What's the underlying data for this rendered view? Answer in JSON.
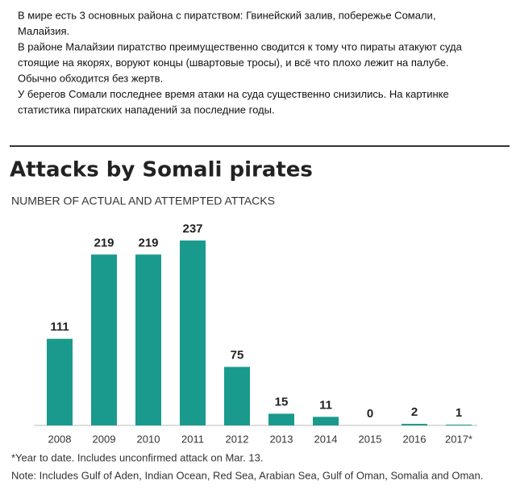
{
  "intro_lines": [
    "В мире есть 3 основных района с пиратством: Гвинейский залив, побережье Сомали,",
    "Малайзия.",
    "В районе Малайзии пиратство преимущественно сводится к тому что пираты атакуют суда",
    "стоящие  на якорях, воруют концы (швартовые тросы), и всё что плохо лежит на палубе.",
    "Обычно обходится без жертв.",
    "У берегов Сомали последнее время атаки на суда существенно снизились. На картинке",
    "статистика пиратских нападений за последние годы."
  ],
  "chart_data": {
    "type": "bar",
    "title": "Attacks by Somali pirates",
    "subtitle": "NUMBER OF ACTUAL AND ATTEMPTED ATTACKS",
    "categories": [
      "2008",
      "2009",
      "2010",
      "2011",
      "2012",
      "2013",
      "2014",
      "2015",
      "2016",
      "2017*"
    ],
    "values": [
      111,
      219,
      219,
      237,
      75,
      15,
      11,
      0,
      2,
      1
    ],
    "color": "#1a9a8c",
    "ylim": [
      0,
      240
    ],
    "footnotes": [
      "*Year to date. Includes unconfirmed attack on Mar. 13.",
      "Note: Includes Gulf of Aden, Indian Ocean, Red Sea, Arabian Sea, Gulf of Oman, Somalia and Oman."
    ]
  }
}
